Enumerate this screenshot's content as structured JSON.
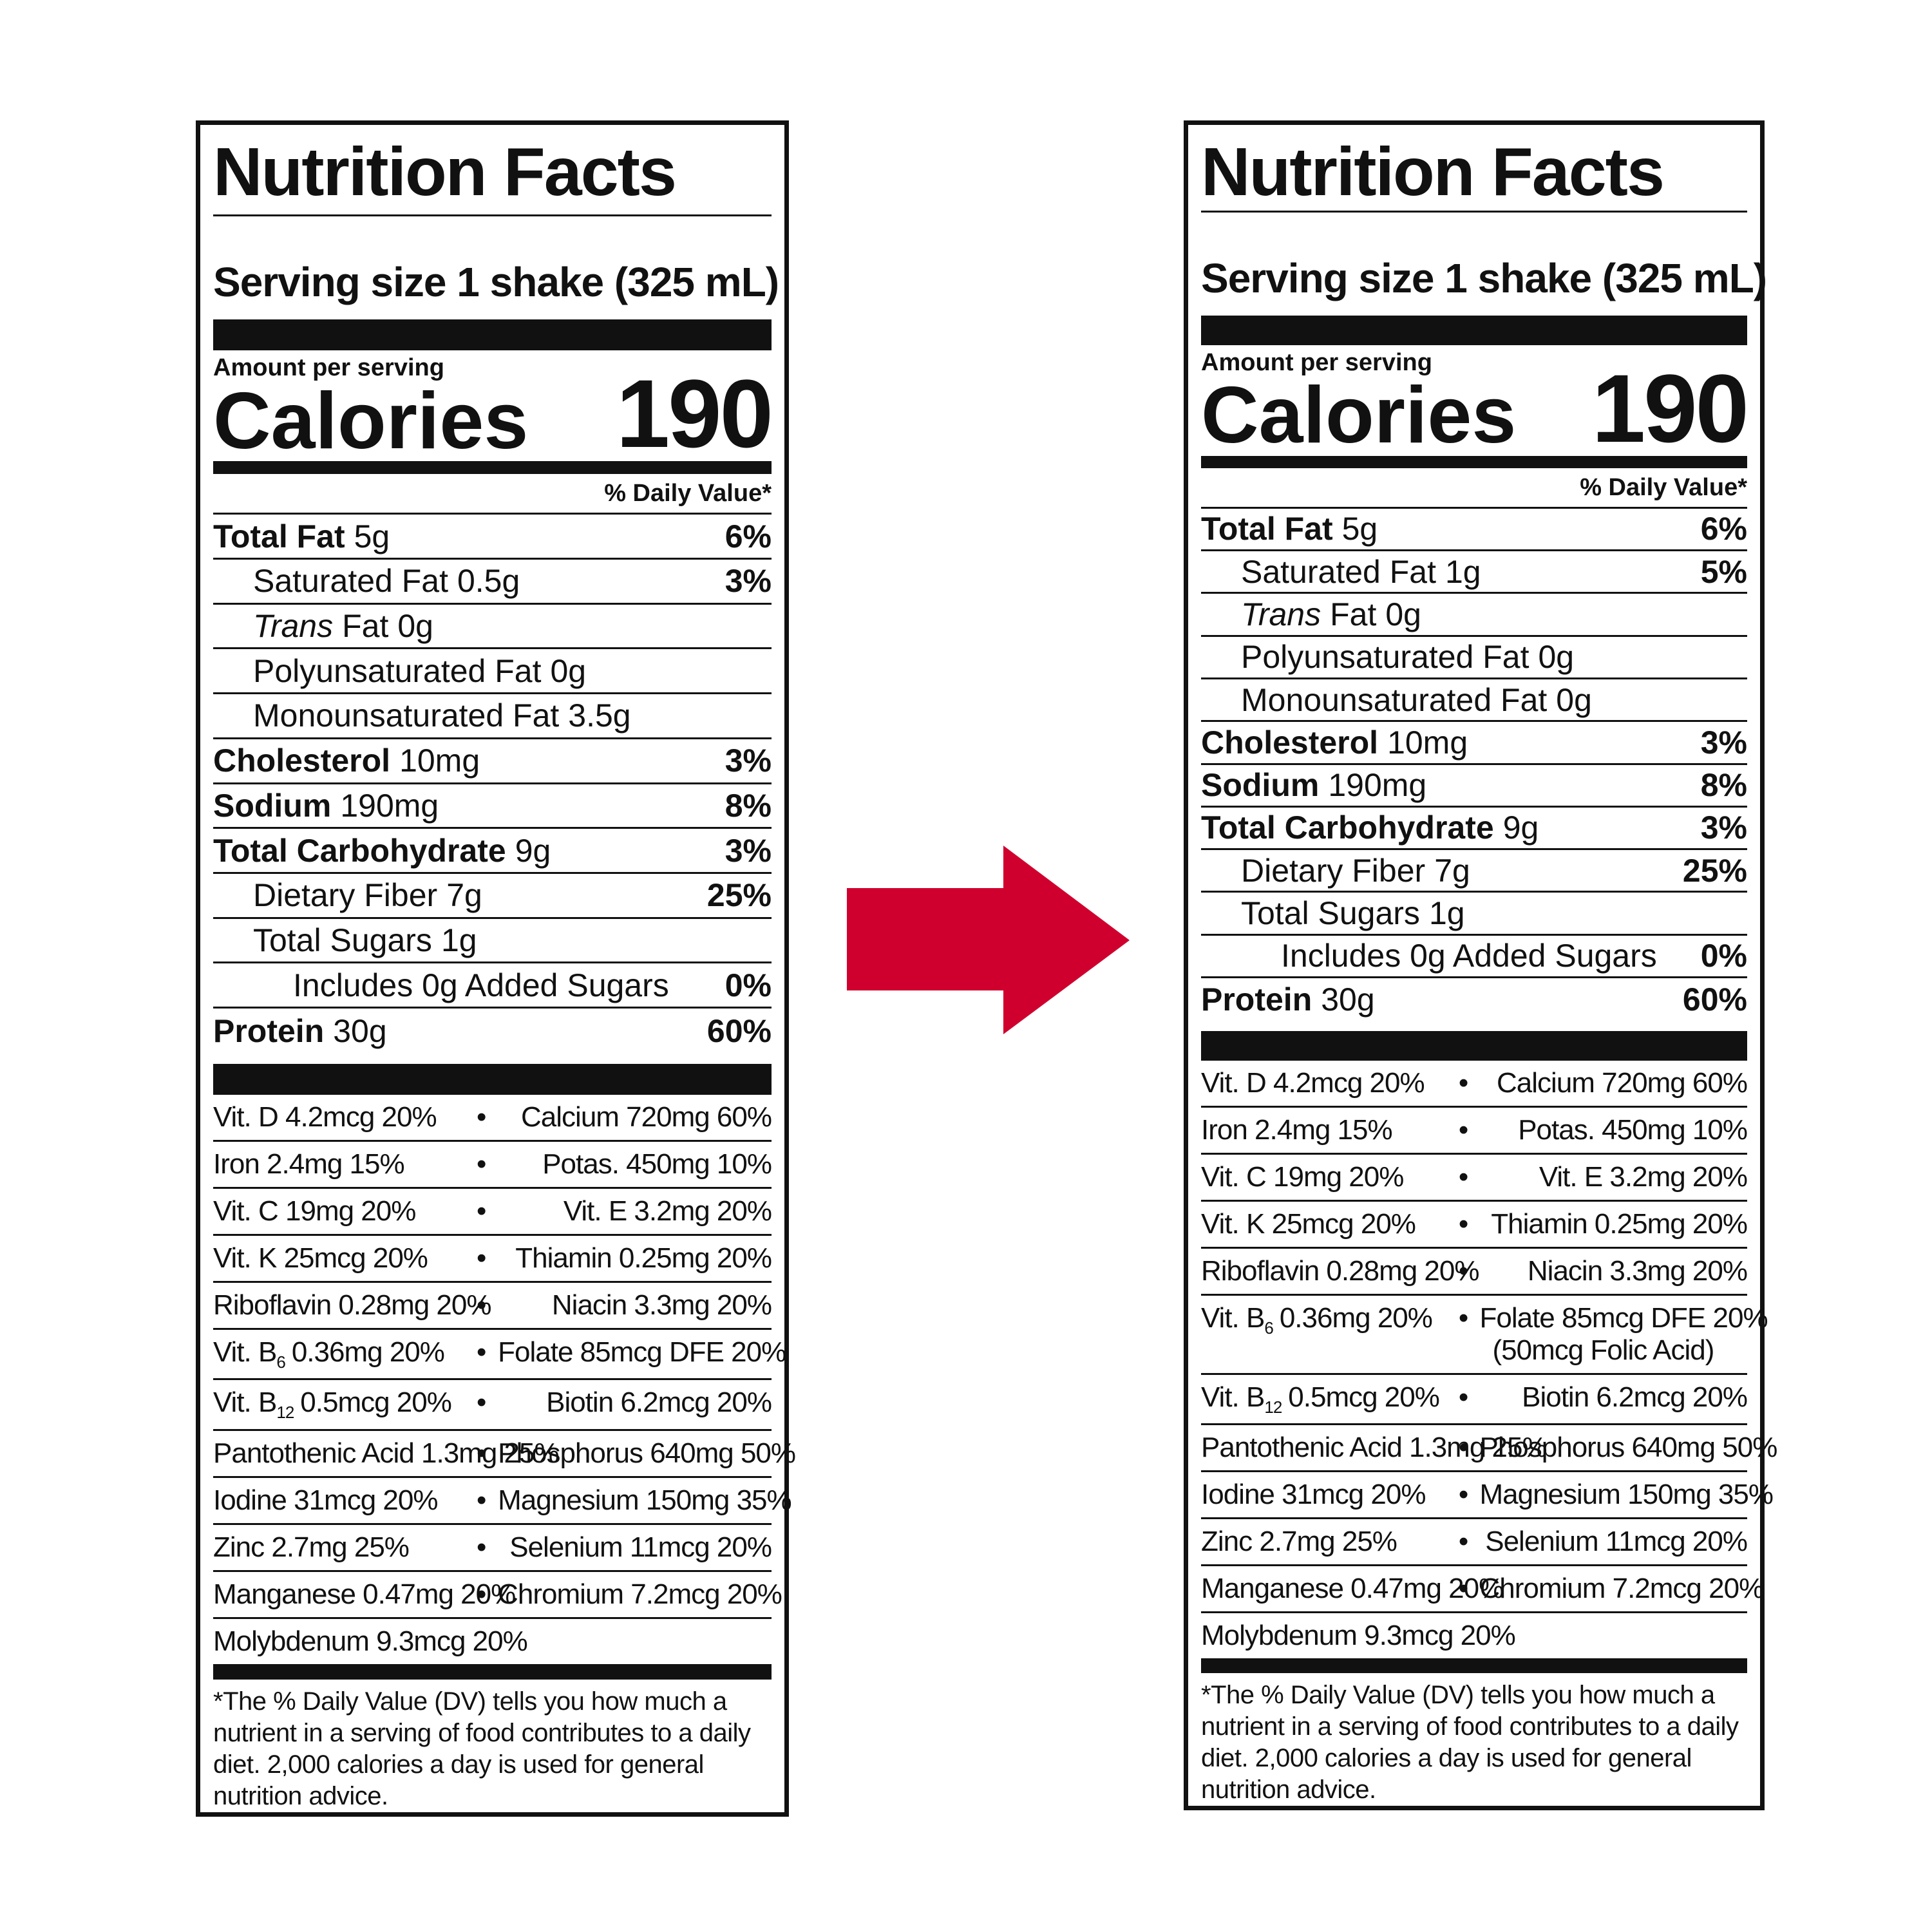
{
  "labels": [
    {
      "title": "Nutrition Facts",
      "serving": "Serving size 1 shake (325 mL)",
      "amount_per_serving": "Amount per serving",
      "calories_label": "Calories",
      "calories": "190",
      "dv_header": "% Daily Value*",
      "nutrients": [
        {
          "name": "Total Fat",
          "amount": "5g",
          "dv": "6%",
          "sub": [
            {
              "name": "Saturated Fat",
              "amount": "0.5g",
              "dv": "3%"
            },
            {
              "name_italic": "Trans",
              "name": "Fat",
              "amount": "0g"
            },
            {
              "name": "Polyunsaturated Fat",
              "amount": "0g"
            },
            {
              "name": "Monounsaturated Fat",
              "amount": "3.5g"
            }
          ]
        },
        {
          "name": "Cholesterol",
          "amount": "10mg",
          "dv": "3%"
        },
        {
          "name": "Sodium",
          "amount": "190mg",
          "dv": "8%"
        },
        {
          "name": "Total Carbohydrate",
          "amount": "9g",
          "dv": "3%",
          "sub": [
            {
              "name": "Dietary Fiber",
              "amount": "7g",
              "dv": "25%"
            },
            {
              "name": "Total Sugars",
              "amount": "1g",
              "sub": [
                {
                  "name": "Includes 0g Added Sugars",
                  "dv": "0%"
                }
              ]
            }
          ]
        },
        {
          "name": "Protein",
          "amount": "30g",
          "dv": "60%"
        }
      ],
      "separator": "•",
      "vitamins": [
        [
          "Vit. D 4.2mcg 20%",
          "Calcium 720mg 60%"
        ],
        [
          "Iron 2.4mg 15%",
          "Potas. 450mg 10%"
        ],
        [
          "Vit. C 19mg 20%",
          "Vit. E 3.2mg 20%"
        ],
        [
          "Vit. K 25mcg 20%",
          "Thiamin 0.25mg 20%"
        ],
        [
          "Riboflavin 0.28mg 20%",
          "Niacin 3.3mg 20%"
        ],
        [
          {
            "text": "Vit. B",
            "sub": "6",
            "rest": "0.36mg 20%"
          },
          "Folate 85mcg DFE 20%"
        ],
        [
          {
            "text": "Vit. B",
            "sub": "12",
            "rest": "0.5mcg 20%"
          },
          "Biotin 6.2mcg 20%"
        ],
        [
          "Pantothenic Acid 1.3mg 25%",
          "Phosphorus 640mg 50%"
        ],
        [
          "Iodine 31mcg 20%",
          "Magnesium 150mg 35%"
        ],
        [
          "Zinc 2.7mg 25%",
          "Selenium 11mcg 20%"
        ],
        [
          "Manganese 0.47mg 20%",
          "Chromium 7.2mcg 20%"
        ],
        [
          "Molybdenum 9.3mcg 20%"
        ]
      ],
      "footnote": "*The % Daily Value (DV) tells you how much a nutrient in a serving of food contributes to a daily diet. 2,000 calories a day is used for general nutrition advice."
    },
    {
      "title": "Nutrition Facts",
      "serving": "Serving size 1 shake (325 mL)",
      "amount_per_serving": "Amount per serving",
      "calories_label": "Calories",
      "calories": "190",
      "dv_header": "% Daily Value*",
      "nutrients": [
        {
          "name": "Total Fat",
          "amount": "5g",
          "dv": "6%",
          "sub": [
            {
              "name": "Saturated Fat",
              "amount": "1g",
              "dv": "5%"
            },
            {
              "name_italic": "Trans",
              "name": "Fat",
              "amount": "0g"
            },
            {
              "name": "Polyunsaturated Fat",
              "amount": "0g"
            },
            {
              "name": "Monounsaturated Fat",
              "amount": "0g"
            }
          ]
        },
        {
          "name": "Cholesterol",
          "amount": "10mg",
          "dv": "3%"
        },
        {
          "name": "Sodium",
          "amount": "190mg",
          "dv": "8%"
        },
        {
          "name": "Total Carbohydrate",
          "amount": "9g",
          "dv": "3%",
          "sub": [
            {
              "name": "Dietary Fiber",
              "amount": "7g",
              "dv": "25%"
            },
            {
              "name": "Total Sugars",
              "amount": "1g",
              "sub": [
                {
                  "name": "Includes 0g Added Sugars",
                  "dv": "0%"
                }
              ]
            }
          ]
        },
        {
          "name": "Protein",
          "amount": "30g",
          "dv": "60%"
        }
      ],
      "separator": "•",
      "vitamins": [
        [
          "Vit. D 4.2mcg 20%",
          "Calcium 720mg 60%"
        ],
        [
          "Iron 2.4mg 15%",
          "Potas. 450mg 10%"
        ],
        [
          "Vit. C 19mg 20%",
          "Vit. E 3.2mg 20%"
        ],
        [
          "Vit. K 25mcg 20%",
          "Thiamin 0.25mg 20%"
        ],
        [
          "Riboflavin 0.28mg 20%",
          "Niacin 3.3mg 20%"
        ],
        [
          {
            "text": "Vit. B",
            "sub": "6",
            "rest": "0.36mg 20%"
          },
          {
            "text": "Folate 85mcg DFE 20%",
            "note": "(50mcg Folic Acid)"
          }
        ],
        [
          {
            "text": "Vit. B",
            "sub": "12",
            "rest": "0.5mcg 20%"
          },
          "Biotin 6.2mcg 20%"
        ],
        [
          "Pantothenic Acid 1.3mg 25%",
          "Phosphorus 640mg 50%"
        ],
        [
          "Iodine 31mcg 20%",
          "Magnesium 150mg 35%"
        ],
        [
          "Zinc 2.7mg 25%",
          "Selenium 11mcg 20%"
        ],
        [
          "Manganese 0.47mg 20%",
          "Chromium 7.2mcg 20%"
        ],
        [
          "Molybdenum 9.3mcg 20%"
        ]
      ],
      "footnote": "*The % Daily Value (DV) tells you how much a nutrient in a serving of food contributes to a daily diet. 2,000 calories a day is used for general nutrition advice."
    }
  ]
}
